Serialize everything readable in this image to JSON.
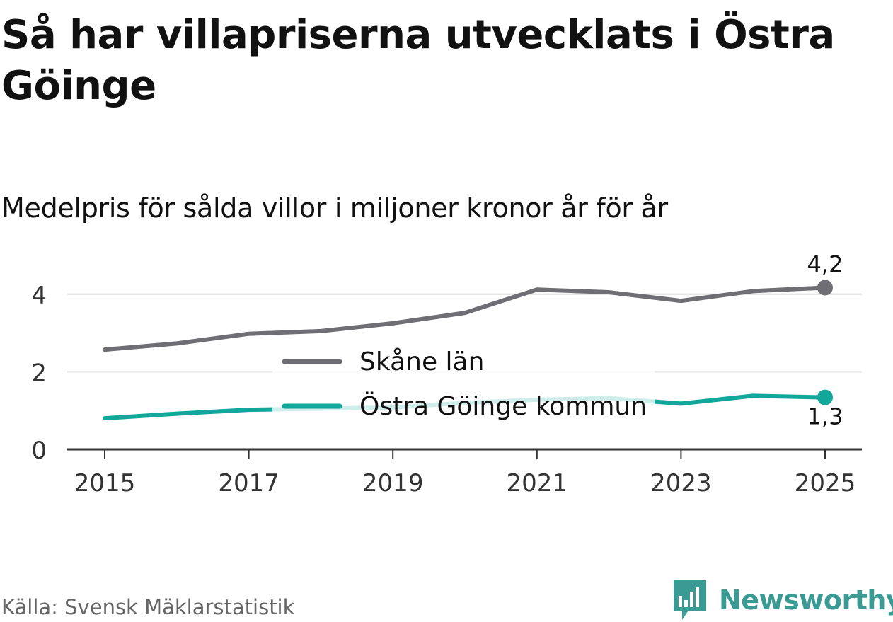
{
  "header": {
    "title": "Så har villapriserna utvecklats i Östra Göinge",
    "subtitle": "Medelpris för sålda villor i miljoner kronor år för år"
  },
  "footer": {
    "source": "Källa: Svensk Mäklarstatistik",
    "brand": "Newsworthy",
    "brand_icon": "bar-chart-speech-bubble-icon"
  },
  "colors": {
    "skane": "#6f6e75",
    "goinge": "#11a79b",
    "grid": "#dddddd",
    "axis": "#333333",
    "brand": "#3a9a94"
  },
  "chart_data": {
    "type": "line",
    "x": [
      2015,
      2016,
      2017,
      2018,
      2019,
      2020,
      2021,
      2022,
      2023,
      2024,
      2025
    ],
    "x_ticks": [
      2015,
      2017,
      2019,
      2021,
      2023,
      2025
    ],
    "x_tick_labels": [
      "2015",
      "2017",
      "2019",
      "2021",
      "2023",
      "2025"
    ],
    "y_ticks": [
      0,
      2,
      4
    ],
    "y_tick_labels": [
      "0",
      "2",
      "4"
    ],
    "ylim": [
      0,
      4.6
    ],
    "series": [
      {
        "name": "Skåne län",
        "color": "#6f6e75",
        "values": [
          2.57,
          2.73,
          2.98,
          3.05,
          3.25,
          3.52,
          4.12,
          4.05,
          3.83,
          4.08,
          4.17
        ],
        "end_label": "4,2"
      },
      {
        "name": "Östra Göinge kommun",
        "color": "#11a79b",
        "values": [
          0.8,
          0.92,
          1.02,
          1.05,
          1.08,
          1.2,
          1.28,
          1.32,
          1.18,
          1.38,
          1.34
        ],
        "end_label": "1,3"
      }
    ],
    "legend_position": "center"
  }
}
